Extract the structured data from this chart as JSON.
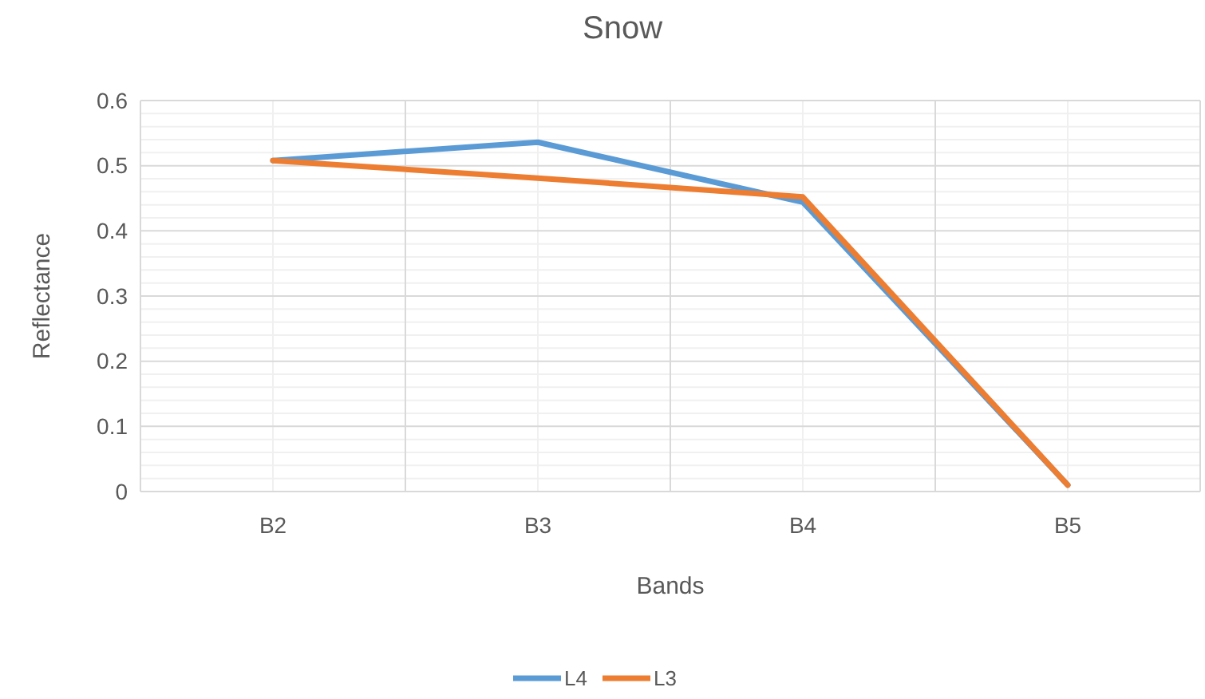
{
  "chart_data": {
    "type": "line",
    "title": "Snow",
    "xlabel": "Bands",
    "ylabel": "Reflectance",
    "categories": [
      "B2",
      "B3",
      "B4",
      "B5"
    ],
    "series": [
      {
        "name": "L4",
        "color": "#5b9bd5",
        "values": [
          0.508,
          0.536,
          0.444,
          0.01
        ]
      },
      {
        "name": "L3",
        "color": "#ed7d31",
        "values": [
          0.508,
          0.481,
          0.452,
          0.01
        ]
      }
    ],
    "ylim": [
      0,
      0.6
    ],
    "yticks": [
      0,
      0.1,
      0.2,
      0.3,
      0.4,
      0.5,
      0.6
    ],
    "grid": true,
    "legend": "bottom",
    "line_style": "solid"
  }
}
